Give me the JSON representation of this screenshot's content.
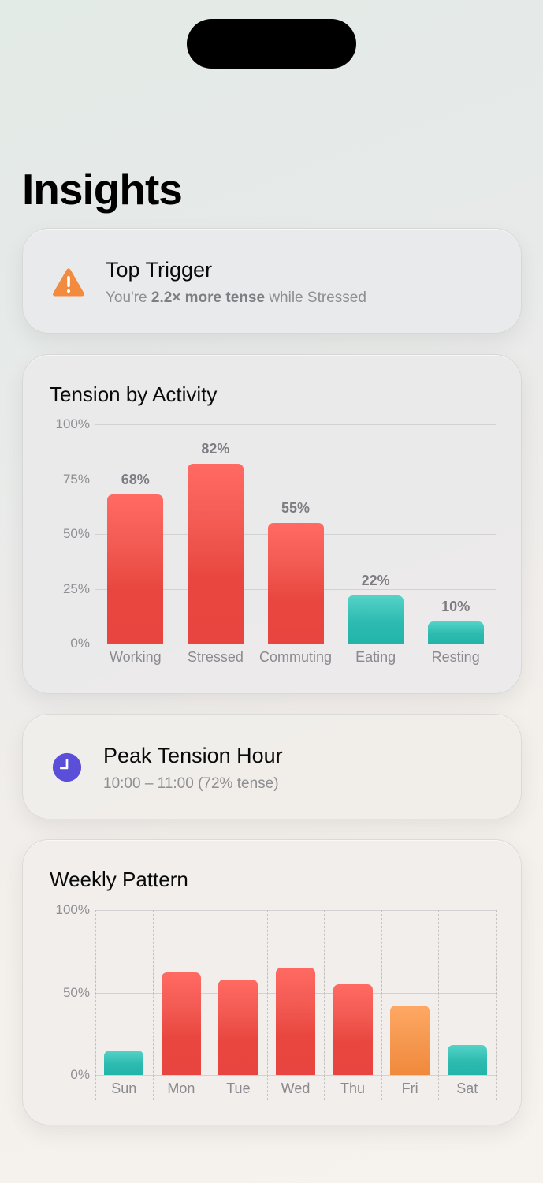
{
  "page": {
    "title": "Insights"
  },
  "top_trigger": {
    "title": "Top Trigger",
    "subtitle_prefix": "You're ",
    "subtitle_bold": "2.2× more tense",
    "subtitle_suffix": " while Stressed",
    "icon": "warning-triangle-icon",
    "icon_color": "#f28b3e"
  },
  "peak_hour": {
    "title": "Peak Tension Hour",
    "subtitle": "10:00 – 11:00 (72% tense)",
    "icon": "clock-icon",
    "icon_color": "#5b4fd9"
  },
  "colors": {
    "high": "#ef5049",
    "medium": "#f59448",
    "low": "#2fbcb1"
  },
  "chart_data": [
    {
      "type": "bar",
      "title": "Tension by Activity",
      "categories": [
        "Working",
        "Stressed",
        "Commuting",
        "Eating",
        "Resting"
      ],
      "values": [
        68,
        82,
        55,
        22,
        10
      ],
      "value_labels": [
        "68%",
        "82%",
        "55%",
        "22%",
        "10%"
      ],
      "bar_colors": [
        "red",
        "red",
        "red",
        "teal",
        "teal"
      ],
      "yticks": [
        "100%",
        "75%",
        "50%",
        "25%",
        "0%"
      ],
      "ylim": [
        0,
        100
      ],
      "xlabel": "",
      "ylabel": "",
      "grid": "horizontal",
      "legend": "none"
    },
    {
      "type": "bar",
      "title": "Weekly Pattern",
      "categories": [
        "Sun",
        "Mon",
        "Tue",
        "Wed",
        "Thu",
        "Fri",
        "Sat"
      ],
      "values": [
        15,
        62,
        58,
        65,
        55,
        42,
        18
      ],
      "bar_colors": [
        "teal",
        "red",
        "red",
        "red",
        "red",
        "orange",
        "teal"
      ],
      "yticks": [
        "100%",
        "50%",
        "0%"
      ],
      "ylim": [
        0,
        100
      ],
      "xlabel": "",
      "ylabel": "",
      "grid": "horizontal + dashed vertical",
      "legend": "none"
    }
  ]
}
